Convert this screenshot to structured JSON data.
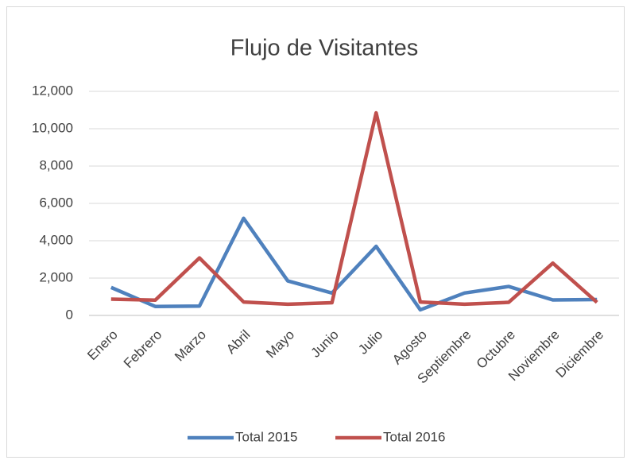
{
  "chart_data": {
    "type": "line",
    "title": "Flujo de Visitantes",
    "categories": [
      "Enero",
      "Febrero",
      "Marzo",
      "Abril",
      "Mayo",
      "Junio",
      "Julio",
      "Agosto",
      "Septiembre",
      "Octubre",
      "Noviembre",
      "Diciembre"
    ],
    "series": [
      {
        "name": "Total 2015",
        "color": "#4f81bd",
        "values": [
          1500,
          480,
          500,
          5200,
          1850,
          1200,
          3700,
          300,
          1200,
          1550,
          830,
          850
        ]
      },
      {
        "name": "Total 2016",
        "color": "#c0504d",
        "values": [
          870,
          820,
          3080,
          720,
          600,
          680,
          10850,
          720,
          600,
          700,
          2800,
          700
        ]
      }
    ],
    "ylim": [
      0,
      12000
    ],
    "yticks": [
      0,
      {
        "value": 2000,
        "label": "2,000"
      },
      {
        "value": 4000,
        "label": "4,000"
      },
      {
        "value": 6000,
        "label": "6,000"
      },
      {
        "value": 8000,
        "label": "8,000"
      },
      {
        "value": 10000,
        "label": "10,000"
      },
      {
        "value": 12000,
        "label": "12,000"
      }
    ],
    "grid": true,
    "legend": "bottom"
  }
}
